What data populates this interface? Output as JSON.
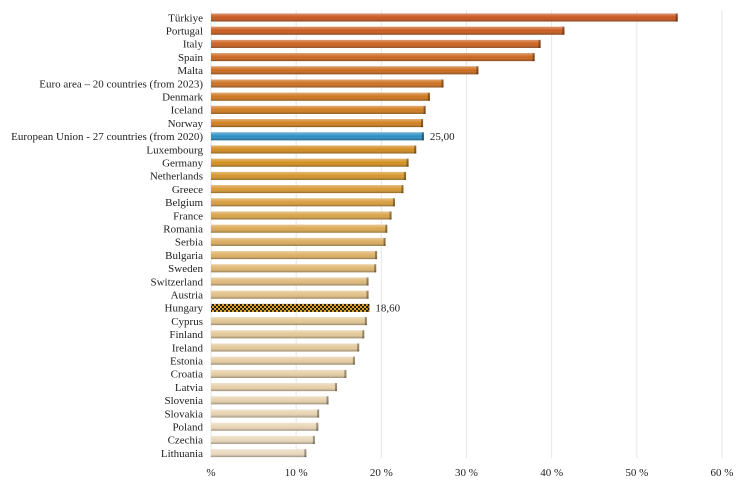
{
  "chart_data": {
    "type": "bar",
    "orientation": "horizontal",
    "title": "",
    "xlabel": "",
    "ylabel": "",
    "xlim": [
      0,
      60
    ],
    "x_ticks": [
      "%",
      "10 %",
      "20 %",
      "30 %",
      "40 %",
      "50 %",
      "60 %"
    ],
    "grid": true,
    "categories": [
      "Türkiye",
      "Portugal",
      "Italy",
      "Spain",
      "Malta",
      "Euro area – 20 countries (from 2023)",
      "Denmark",
      "Iceland",
      "Norway",
      "European Union - 27 countries (from 2020)",
      "Luxembourg",
      "Germany",
      "Netherlands",
      "Greece",
      "Belgium",
      "France",
      "Romania",
      "Serbia",
      "Bulgaria",
      "Sweden",
      "Switzerland",
      "Austria",
      "Hungary",
      "Cyprus",
      "Finland",
      "Ireland",
      "Estonia",
      "Croatia",
      "Latvia",
      "Slovenia",
      "Slovakia",
      "Poland",
      "Czechia",
      "Lithuania"
    ],
    "values": [
      54.8,
      41.5,
      38.7,
      38.0,
      31.4,
      27.3,
      25.7,
      25.2,
      24.9,
      25.0,
      24.1,
      23.2,
      22.9,
      22.6,
      21.6,
      21.2,
      20.7,
      20.5,
      19.5,
      19.4,
      18.5,
      18.5,
      18.6,
      18.3,
      18.0,
      17.4,
      16.9,
      15.9,
      14.8,
      13.8,
      12.7,
      12.6,
      12.2,
      11.2
    ],
    "data_labels": {
      "European Union - 27 countries (from 2020)": "25,00",
      "Hungary": "18,60"
    },
    "highlight": {
      "European Union - 27 countries (from 2020)": "#2a8fc4",
      "Hungary": "checkered"
    },
    "colors": {
      "top": "#c8561d",
      "mid": "#d4901f",
      "low": "#e2c48f",
      "bottom": "#ead9bd"
    }
  }
}
